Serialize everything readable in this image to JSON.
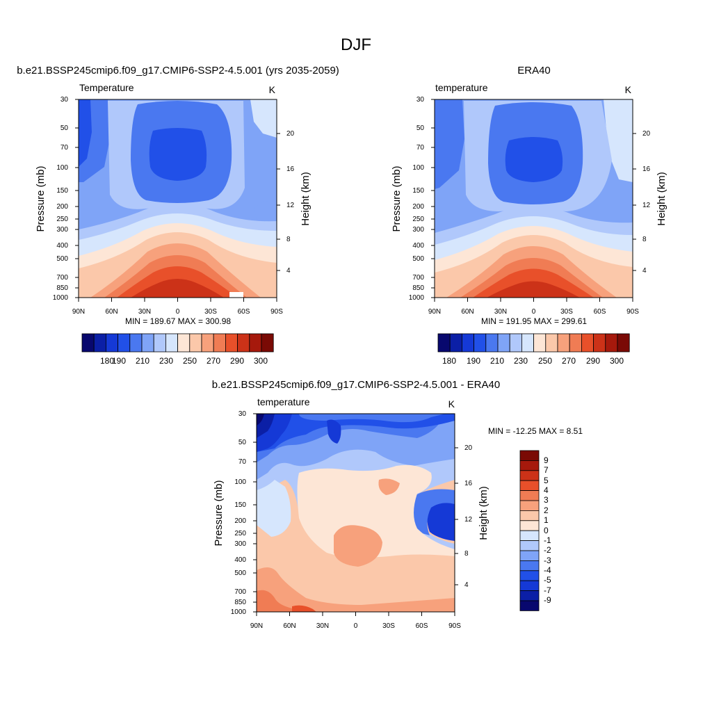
{
  "figure": {
    "title": "DJF"
  },
  "chart_data": [
    {
      "type": "heatmap",
      "id": "model",
      "title": "b.e21.BSSP245cmip6.f09_g17.CMIP6-SSP2-4.5.001 (yrs 2035-2059)",
      "left_label": "Temperature",
      "units": "K",
      "ylabel": "Pressure (mb)",
      "y2label": "Height (km)",
      "x_ticklabels": [
        "90N",
        "60N",
        "30N",
        "0",
        "30S",
        "60S",
        "90S"
      ],
      "x_tick_values": [
        90,
        60,
        30,
        0,
        -30,
        -60,
        -90
      ],
      "y_ticklabels": [
        "30",
        "50",
        "70",
        "100",
        "150",
        "200",
        "250",
        "300",
        "400",
        "500",
        "700",
        "850",
        "1000"
      ],
      "y2_ticklabels": [
        "20",
        "16",
        "12",
        "8",
        "4"
      ],
      "stats": "MIN = 189.67  MAX = 300.98",
      "min": 189.67,
      "max": 300.98,
      "colorbar_labels": [
        "180",
        "190",
        "210",
        "230",
        "250",
        "270",
        "290",
        "300"
      ],
      "colorbar_colors": [
        "#08086e",
        "#0b1fa6",
        "#1539d6",
        "#2150e8",
        "#4a78f0",
        "#7fa4f7",
        "#b0c8fb",
        "#d6e6fd",
        "#fde6d6",
        "#fbc8aa",
        "#f7a17c",
        "#f07c54",
        "#e8502a",
        "#cc3218",
        "#a6190c",
        "#7a0a05"
      ]
    },
    {
      "type": "heatmap",
      "id": "obs",
      "title": "ERA40",
      "left_label": "temperature",
      "units": "K",
      "ylabel": "Pressure (mb)",
      "y2label": "Height (km)",
      "x_ticklabels": [
        "90N",
        "60N",
        "30N",
        "0",
        "30S",
        "60S",
        "90S"
      ],
      "x_tick_values": [
        90,
        60,
        30,
        0,
        -30,
        -60,
        -90
      ],
      "y_ticklabels": [
        "30",
        "50",
        "70",
        "100",
        "150",
        "200",
        "250",
        "300",
        "400",
        "500",
        "700",
        "850",
        "1000"
      ],
      "y2_ticklabels": [
        "20",
        "16",
        "12",
        "8",
        "4"
      ],
      "stats": "MIN = 191.95  MAX = 299.61",
      "min": 191.95,
      "max": 299.61,
      "colorbar_labels": [
        "180",
        "190",
        "210",
        "230",
        "250",
        "270",
        "290",
        "300"
      ],
      "colorbar_colors": [
        "#08086e",
        "#0b1fa6",
        "#1539d6",
        "#2150e8",
        "#4a78f0",
        "#7fa4f7",
        "#b0c8fb",
        "#d6e6fd",
        "#fde6d6",
        "#fbc8aa",
        "#f7a17c",
        "#f07c54",
        "#e8502a",
        "#cc3218",
        "#a6190c",
        "#7a0a05"
      ]
    },
    {
      "type": "heatmap",
      "id": "diff",
      "title": "b.e21.BSSP245cmip6.f09_g17.CMIP6-SSP2-4.5.001 - ERA40",
      "left_label": "temperature",
      "units": "K",
      "ylabel": "Pressure (mb)",
      "y2label": "Height (km)",
      "x_ticklabels": [
        "90N",
        "60N",
        "30N",
        "0",
        "30S",
        "60S",
        "90S"
      ],
      "x_tick_values": [
        90,
        60,
        30,
        0,
        -30,
        -60,
        -90
      ],
      "y_ticklabels": [
        "30",
        "50",
        "70",
        "100",
        "150",
        "200",
        "250",
        "300",
        "400",
        "500",
        "700",
        "850",
        "1000"
      ],
      "y2_ticklabels": [
        "20",
        "16",
        "12",
        "8",
        "4"
      ],
      "stats": "MIN = -12.25  MAX =   8.51",
      "min": -12.25,
      "max": 8.51,
      "colorbar_labels": [
        "9",
        "7",
        "5",
        "4",
        "3",
        "2",
        "1",
        "0",
        "-1",
        "-2",
        "-3",
        "-4",
        "-5",
        "-7",
        "-9"
      ],
      "colorbar_colors": [
        "#7a0a05",
        "#a6190c",
        "#cc3218",
        "#e8502a",
        "#f07c54",
        "#f7a17c",
        "#fbc8aa",
        "#fde6d6",
        "#d6e6fd",
        "#b0c8fb",
        "#7fa4f7",
        "#4a78f0",
        "#2150e8",
        "#1539d6",
        "#0b1fa6",
        "#08086e"
      ]
    }
  ]
}
